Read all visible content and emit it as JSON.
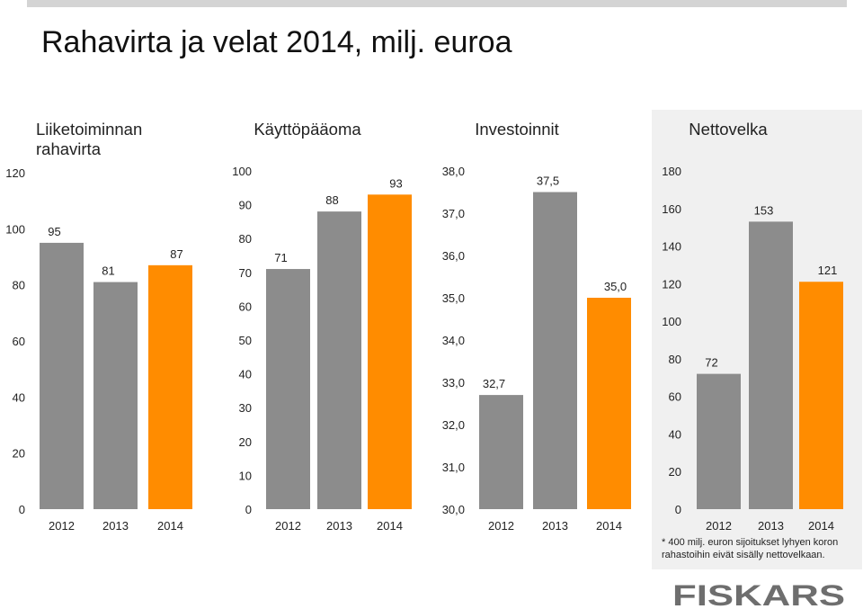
{
  "title": "Rahavirta ja velat 2014, milj. euroa",
  "colors": {
    "gray": "#8c8c8c",
    "orange": "#ff8c00",
    "panel_bg": "#f0f0f0"
  },
  "chart_data": [
    {
      "type": "bar",
      "title": "Liiketoiminnan rahavirta",
      "categories": [
        "2012",
        "2013",
        "2014"
      ],
      "values": [
        95,
        81,
        87
      ],
      "value_labels": [
        "95",
        "81",
        "87"
      ],
      "ylim": [
        0,
        120
      ],
      "yticks": [
        "0",
        "20",
        "40",
        "60",
        "80",
        "100",
        "120"
      ],
      "bar_colors": [
        "gray",
        "gray",
        "orange"
      ]
    },
    {
      "type": "bar",
      "title": "Käyttöpääoma",
      "categories": [
        "2012",
        "2013",
        "2014"
      ],
      "values": [
        71,
        88,
        93
      ],
      "value_labels": [
        "71",
        "88",
        "93"
      ],
      "ylim": [
        0,
        100
      ],
      "yticks": [
        "0",
        "10",
        "20",
        "30",
        "40",
        "50",
        "60",
        "70",
        "80",
        "90",
        "100"
      ],
      "bar_colors": [
        "gray",
        "gray",
        "orange"
      ]
    },
    {
      "type": "bar",
      "title": "Investoinnit",
      "categories": [
        "2012",
        "2013",
        "2014"
      ],
      "values": [
        32.7,
        37.5,
        35.0
      ],
      "value_labels": [
        "32,7",
        "37,5",
        "35,0"
      ],
      "ylim": [
        30,
        38
      ],
      "yticks": [
        "30,0",
        "31,0",
        "32,0",
        "33,0",
        "34,0",
        "35,0",
        "36,0",
        "37,0",
        "38,0"
      ],
      "bar_colors": [
        "gray",
        "gray",
        "orange"
      ]
    },
    {
      "type": "bar",
      "title": "Nettovelka",
      "categories": [
        "2012",
        "2013",
        "2014"
      ],
      "values": [
        72,
        153,
        121
      ],
      "value_labels": [
        "72",
        "153",
        "121"
      ],
      "ylim": [
        0,
        180
      ],
      "yticks": [
        "0",
        "20",
        "40",
        "60",
        "80",
        "100",
        "120",
        "140",
        "160",
        "180"
      ],
      "bar_colors": [
        "gray",
        "gray",
        "orange"
      ]
    }
  ],
  "footnote": {
    "line1": "* 400 milj. euron sijoitukset lyhyen koron",
    "line2": "rahastoihin eivät sisälly  nettovelkaan."
  },
  "logo_text": "FISKARS"
}
